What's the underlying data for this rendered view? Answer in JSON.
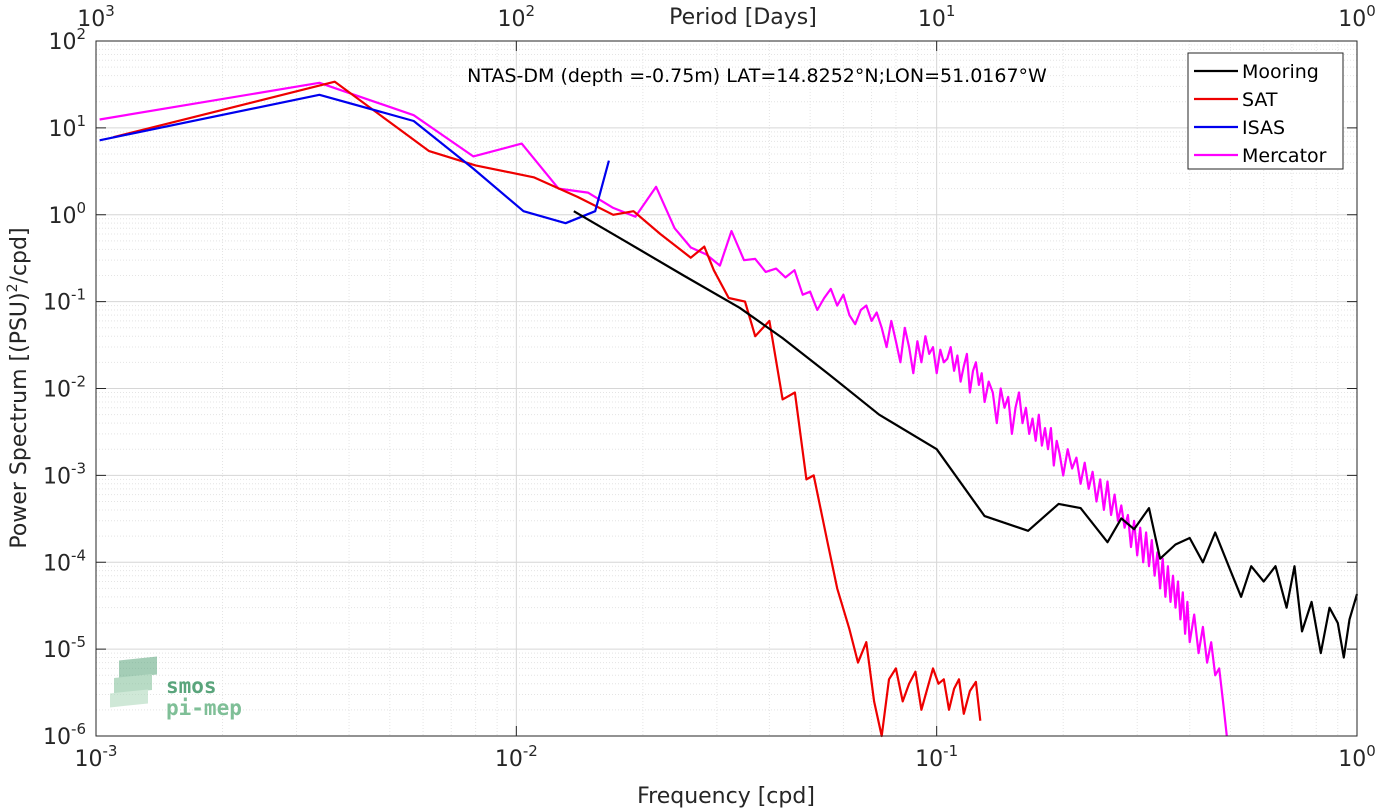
{
  "chart_data": {
    "type": "line",
    "title": "NTAS-DM (depth =-0.75m) LAT=14.8252°N;LON=51.0167°W",
    "xlabel": "Frequency [cpd]",
    "ylabel": "Power Spectrum [(PSU)",
    "ylabel_exp": "2",
    "ylabel_tail": "/cpd]",
    "top_xlabel": "Period [Days]",
    "x_scale": "log",
    "y_scale": "log",
    "xlim": [
      0.001,
      1
    ],
    "ylim": [
      1e-06,
      100
    ],
    "grid": true,
    "legend_position": "top-right",
    "x_ticks": [
      {
        "value": 0.001,
        "base": "10",
        "exp": "-3"
      },
      {
        "value": 0.01,
        "base": "10",
        "exp": "-2"
      },
      {
        "value": 0.1,
        "base": "10",
        "exp": "-1"
      },
      {
        "value": 1,
        "base": "10",
        "exp": "0"
      }
    ],
    "y_ticks": [
      {
        "value": 1e-06,
        "base": "10",
        "exp": "-6"
      },
      {
        "value": 1e-05,
        "base": "10",
        "exp": "-5"
      },
      {
        "value": 0.0001,
        "base": "10",
        "exp": "-4"
      },
      {
        "value": 0.001,
        "base": "10",
        "exp": "-3"
      },
      {
        "value": 0.01,
        "base": "10",
        "exp": "-2"
      },
      {
        "value": 0.1,
        "base": "10",
        "exp": "-1"
      },
      {
        "value": 1,
        "base": "10",
        "exp": "0"
      },
      {
        "value": 10,
        "base": "10",
        "exp": "1"
      },
      {
        "value": 100,
        "base": "10",
        "exp": "2"
      }
    ],
    "top_ticks": [
      {
        "value": 0.001,
        "base": "10",
        "exp": "3"
      },
      {
        "value": 0.01,
        "base": "10",
        "exp": "2"
      },
      {
        "value": 0.1,
        "base": "10",
        "exp": "1"
      },
      {
        "value": 1,
        "base": "10",
        "exp": "0"
      }
    ],
    "series": [
      {
        "name": "Mooring",
        "color": "#000000",
        "points": [
          [
            0.0137,
            1.1
          ],
          [
            0.0185,
            0.47
          ],
          [
            0.025,
            0.2
          ],
          [
            0.034,
            0.085
          ],
          [
            0.043,
            0.038
          ],
          [
            0.055,
            0.015
          ],
          [
            0.073,
            0.005
          ],
          [
            0.1,
            0.002
          ],
          [
            0.13,
            0.00034
          ],
          [
            0.165,
            0.00023
          ],
          [
            0.195,
            0.00047
          ],
          [
            0.22,
            0.00042
          ],
          [
            0.255,
            0.00017
          ],
          [
            0.275,
            0.00032
          ],
          [
            0.295,
            0.00024
          ],
          [
            0.32,
            0.00042
          ],
          [
            0.34,
            0.00011
          ],
          [
            0.37,
            0.00016
          ],
          [
            0.4,
            0.00019
          ],
          [
            0.43,
            0.0001
          ],
          [
            0.46,
            0.00022
          ],
          [
            0.5,
            8e-05
          ],
          [
            0.53,
            4e-05
          ],
          [
            0.56,
            9e-05
          ],
          [
            0.6,
            6e-05
          ],
          [
            0.64,
            9e-05
          ],
          [
            0.68,
            3e-05
          ],
          [
            0.71,
            9e-05
          ],
          [
            0.74,
            1.6e-05
          ],
          [
            0.78,
            3.5e-05
          ],
          [
            0.82,
            9e-06
          ],
          [
            0.86,
            3e-05
          ],
          [
            0.9,
            2e-05
          ],
          [
            0.93,
            8e-06
          ],
          [
            0.96,
            2.2e-05
          ],
          [
            1.0,
            4.3e-05
          ]
        ]
      },
      {
        "name": "SAT",
        "color": "#ee0000",
        "points": [
          [
            0.0011,
            7.8
          ],
          [
            0.0037,
            34
          ],
          [
            0.0062,
            5.4
          ],
          [
            0.008,
            3.7
          ],
          [
            0.011,
            2.7
          ],
          [
            0.014,
            1.6
          ],
          [
            0.017,
            1.0
          ],
          [
            0.019,
            1.1
          ],
          [
            0.022,
            0.6
          ],
          [
            0.026,
            0.32
          ],
          [
            0.028,
            0.43
          ],
          [
            0.0295,
            0.23
          ],
          [
            0.032,
            0.11
          ],
          [
            0.035,
            0.1
          ],
          [
            0.037,
            0.04
          ],
          [
            0.04,
            0.06
          ],
          [
            0.043,
            0.0075
          ],
          [
            0.046,
            0.009
          ],
          [
            0.049,
            0.0009
          ],
          [
            0.051,
            0.001
          ],
          [
            0.055,
            0.00017
          ],
          [
            0.058,
            5e-05
          ],
          [
            0.062,
            1.7e-05
          ],
          [
            0.065,
            7e-06
          ],
          [
            0.068,
            1.2e-05
          ],
          [
            0.071,
            2.5e-06
          ],
          [
            0.074,
            1e-06
          ],
          [
            0.077,
            4.5e-06
          ],
          [
            0.08,
            6e-06
          ],
          [
            0.083,
            2.5e-06
          ],
          [
            0.086,
            4e-06
          ],
          [
            0.089,
            5.5e-06
          ],
          [
            0.092,
            2e-06
          ],
          [
            0.095,
            3.5e-06
          ],
          [
            0.098,
            6e-06
          ],
          [
            0.101,
            4e-06
          ],
          [
            0.104,
            4.5e-06
          ],
          [
            0.107,
            2e-06
          ],
          [
            0.11,
            3.5e-06
          ],
          [
            0.113,
            4.5e-06
          ],
          [
            0.116,
            1.8e-06
          ],
          [
            0.12,
            3.3e-06
          ],
          [
            0.124,
            4.2e-06
          ],
          [
            0.127,
            1.5e-06
          ]
        ]
      },
      {
        "name": "ISAS",
        "color": "#0000ee",
        "points": [
          [
            0.00102,
            7.2
          ],
          [
            0.0034,
            24
          ],
          [
            0.0057,
            12
          ],
          [
            0.0079,
            3.4
          ],
          [
            0.0104,
            1.1
          ],
          [
            0.0131,
            0.8
          ],
          [
            0.0154,
            1.1
          ],
          [
            0.0166,
            4.2
          ]
        ]
      },
      {
        "name": "Mercator",
        "color": "#ff00ff",
        "points": [
          [
            0.00102,
            12.5
          ],
          [
            0.0034,
            33
          ],
          [
            0.0057,
            14
          ],
          [
            0.0079,
            4.7
          ],
          [
            0.0103,
            6.6
          ],
          [
            0.0126,
            2.0
          ],
          [
            0.0148,
            1.8
          ],
          [
            0.017,
            1.2
          ],
          [
            0.0192,
            0.95
          ],
          [
            0.0215,
            2.1
          ],
          [
            0.0238,
            0.7
          ],
          [
            0.026,
            0.42
          ],
          [
            0.0283,
            0.35
          ],
          [
            0.0305,
            0.26
          ],
          [
            0.0325,
            0.65
          ],
          [
            0.0348,
            0.3
          ],
          [
            0.037,
            0.31
          ],
          [
            0.0392,
            0.22
          ],
          [
            0.0415,
            0.24
          ],
          [
            0.0437,
            0.19
          ],
          [
            0.0459,
            0.23
          ],
          [
            0.048,
            0.12
          ],
          [
            0.05,
            0.13
          ],
          [
            0.052,
            0.08
          ],
          [
            0.054,
            0.11
          ],
          [
            0.056,
            0.14
          ],
          [
            0.058,
            0.09
          ],
          [
            0.06,
            0.12
          ],
          [
            0.062,
            0.07
          ],
          [
            0.064,
            0.055
          ],
          [
            0.066,
            0.08
          ],
          [
            0.068,
            0.09
          ],
          [
            0.07,
            0.06
          ],
          [
            0.072,
            0.075
          ],
          [
            0.074,
            0.05
          ],
          [
            0.076,
            0.03
          ],
          [
            0.078,
            0.06
          ],
          [
            0.08,
            0.035
          ],
          [
            0.082,
            0.02
          ],
          [
            0.084,
            0.05
          ],
          [
            0.086,
            0.03
          ],
          [
            0.088,
            0.015
          ],
          [
            0.09,
            0.035
          ],
          [
            0.092,
            0.02
          ],
          [
            0.094,
            0.04
          ],
          [
            0.096,
            0.025
          ],
          [
            0.098,
            0.03
          ],
          [
            0.1,
            0.015
          ],
          [
            0.102,
            0.028
          ],
          [
            0.104,
            0.02
          ],
          [
            0.106,
            0.022
          ],
          [
            0.108,
            0.03
          ],
          [
            0.11,
            0.016
          ],
          [
            0.112,
            0.024
          ],
          [
            0.114,
            0.012
          ],
          [
            0.116,
            0.018
          ],
          [
            0.118,
            0.025
          ],
          [
            0.12,
            0.009
          ],
          [
            0.122,
            0.016
          ],
          [
            0.124,
            0.02
          ],
          [
            0.126,
            0.011
          ],
          [
            0.128,
            0.015
          ],
          [
            0.13,
            0.007
          ],
          [
            0.133,
            0.012
          ],
          [
            0.136,
            0.009
          ],
          [
            0.139,
            0.004
          ],
          [
            0.142,
            0.01
          ],
          [
            0.145,
            0.006
          ],
          [
            0.148,
            0.008
          ],
          [
            0.151,
            0.003
          ],
          [
            0.154,
            0.006
          ],
          [
            0.157,
            0.009
          ],
          [
            0.16,
            0.004
          ],
          [
            0.163,
            0.006
          ],
          [
            0.166,
            0.003
          ],
          [
            0.169,
            0.0045
          ],
          [
            0.172,
            0.0025
          ],
          [
            0.175,
            0.005
          ],
          [
            0.178,
            0.0022
          ],
          [
            0.181,
            0.0035
          ],
          [
            0.184,
            0.002
          ],
          [
            0.187,
            0.0035
          ],
          [
            0.19,
            0.0013
          ],
          [
            0.193,
            0.0025
          ],
          [
            0.196,
            0.0018
          ],
          [
            0.2,
            0.001
          ],
          [
            0.205,
            0.002
          ],
          [
            0.21,
            0.0012
          ],
          [
            0.215,
            0.0016
          ],
          [
            0.22,
            0.0008
          ],
          [
            0.225,
            0.0014
          ],
          [
            0.23,
            0.0007
          ],
          [
            0.235,
            0.0011
          ],
          [
            0.24,
            0.0005
          ],
          [
            0.245,
            0.0009
          ],
          [
            0.25,
            0.0004
          ],
          [
            0.255,
            0.00085
          ],
          [
            0.26,
            0.00035
          ],
          [
            0.265,
            0.0006
          ],
          [
            0.27,
            0.0003
          ],
          [
            0.275,
            0.00045
          ],
          [
            0.28,
            0.00025
          ],
          [
            0.285,
            0.00035
          ],
          [
            0.29,
            0.00015
          ],
          [
            0.295,
            0.0003
          ],
          [
            0.3,
            0.00012
          ],
          [
            0.305,
            0.00025
          ],
          [
            0.31,
            0.0001
          ],
          [
            0.315,
            0.00022
          ],
          [
            0.32,
            9e-05
          ],
          [
            0.325,
            0.00018
          ],
          [
            0.33,
            7e-05
          ],
          [
            0.335,
            0.00013
          ],
          [
            0.34,
            5e-05
          ],
          [
            0.345,
            0.00011
          ],
          [
            0.35,
            4e-05
          ],
          [
            0.355,
            9e-05
          ],
          [
            0.36,
            3.5e-05
          ],
          [
            0.365,
            7e-05
          ],
          [
            0.37,
            3e-05
          ],
          [
            0.375,
            6e-05
          ],
          [
            0.38,
            2.2e-05
          ],
          [
            0.385,
            4.5e-05
          ],
          [
            0.39,
            1.5e-05
          ],
          [
            0.395,
            3.5e-05
          ],
          [
            0.4,
            1.2e-05
          ],
          [
            0.41,
            2.5e-05
          ],
          [
            0.42,
            9e-06
          ],
          [
            0.43,
            1.8e-05
          ],
          [
            0.44,
            7e-06
          ],
          [
            0.45,
            1.2e-05
          ],
          [
            0.46,
            5e-06
          ],
          [
            0.47,
            6e-06
          ],
          [
            0.48,
            2.5e-06
          ],
          [
            0.49,
            1e-06
          ]
        ]
      }
    ]
  },
  "logo": {
    "line1": "smos",
    "line2": "pi-mep"
  }
}
